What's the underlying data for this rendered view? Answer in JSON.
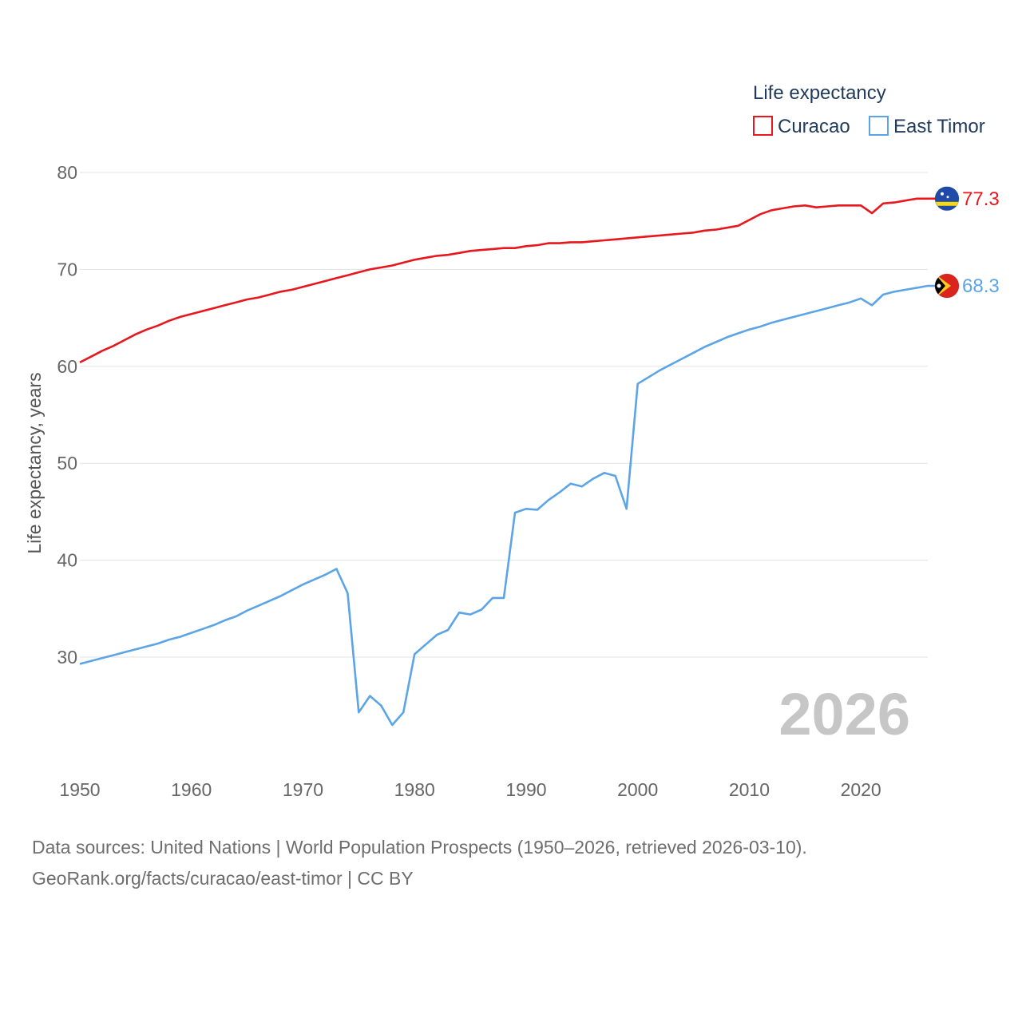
{
  "chart_data": {
    "type": "line",
    "legend_title": "Life expectancy",
    "ylabel": "Life expectancy, years",
    "xlim": [
      1950,
      2026
    ],
    "ylim": [
      20,
      80
    ],
    "yticks": [
      30,
      40,
      50,
      60,
      70,
      80
    ],
    "xticks": [
      1950,
      1960,
      1970,
      1980,
      1990,
      2000,
      2010,
      2020
    ],
    "year_label": "2026",
    "legend_position": "top-right",
    "series": [
      {
        "name": "Curacao",
        "color": "#e8171d",
        "end_label": "77.3",
        "flag_icon": "curacao-flag-icon",
        "x": [
          1950,
          1951,
          1952,
          1953,
          1954,
          1955,
          1956,
          1957,
          1958,
          1959,
          1960,
          1961,
          1962,
          1963,
          1964,
          1965,
          1966,
          1967,
          1968,
          1969,
          1970,
          1971,
          1972,
          1973,
          1974,
          1975,
          1976,
          1977,
          1978,
          1979,
          1980,
          1981,
          1982,
          1983,
          1984,
          1985,
          1986,
          1987,
          1988,
          1989,
          1990,
          1991,
          1992,
          1993,
          1994,
          1995,
          1996,
          1997,
          1998,
          1999,
          2000,
          2001,
          2002,
          2003,
          2004,
          2005,
          2006,
          2007,
          2008,
          2009,
          2010,
          2011,
          2012,
          2013,
          2014,
          2015,
          2016,
          2017,
          2018,
          2019,
          2020,
          2021,
          2022,
          2023,
          2024,
          2025,
          2026
        ],
        "values": [
          60.4,
          61.0,
          61.6,
          62.1,
          62.7,
          63.3,
          63.8,
          64.2,
          64.7,
          65.1,
          65.4,
          65.7,
          66.0,
          66.3,
          66.6,
          66.9,
          67.1,
          67.4,
          67.7,
          67.9,
          68.2,
          68.5,
          68.8,
          69.1,
          69.4,
          69.7,
          70.0,
          70.2,
          70.4,
          70.7,
          71.0,
          71.2,
          71.4,
          71.5,
          71.7,
          71.9,
          72.0,
          72.1,
          72.2,
          72.2,
          72.4,
          72.5,
          72.7,
          72.7,
          72.8,
          72.8,
          72.9,
          73.0,
          73.1,
          73.2,
          73.3,
          73.4,
          73.5,
          73.6,
          73.7,
          73.8,
          74.0,
          74.1,
          74.3,
          74.5,
          75.1,
          75.7,
          76.1,
          76.3,
          76.5,
          76.6,
          76.4,
          76.5,
          76.6,
          76.6,
          76.6,
          75.8,
          76.8,
          76.9,
          77.1,
          77.3,
          77.3
        ]
      },
      {
        "name": "East Timor",
        "color": "#5ba4e6",
        "end_label": "68.3",
        "flag_icon": "east-timor-flag-icon",
        "x": [
          1950,
          1951,
          1952,
          1953,
          1954,
          1955,
          1956,
          1957,
          1958,
          1959,
          1960,
          1961,
          1962,
          1963,
          1964,
          1965,
          1966,
          1967,
          1968,
          1969,
          1970,
          1971,
          1972,
          1973,
          1974,
          1975,
          1976,
          1977,
          1978,
          1979,
          1980,
          1981,
          1982,
          1983,
          1984,
          1985,
          1986,
          1987,
          1988,
          1989,
          1990,
          1991,
          1992,
          1993,
          1994,
          1995,
          1996,
          1997,
          1998,
          1999,
          2000,
          2001,
          2002,
          2003,
          2004,
          2005,
          2006,
          2007,
          2008,
          2009,
          2010,
          2011,
          2012,
          2013,
          2014,
          2015,
          2016,
          2017,
          2018,
          2019,
          2020,
          2021,
          2022,
          2023,
          2024,
          2025,
          2026
        ],
        "values": [
          29.3,
          29.6,
          29.9,
          30.2,
          30.5,
          30.8,
          31.1,
          31.4,
          31.8,
          32.1,
          32.5,
          32.9,
          33.3,
          33.8,
          34.2,
          34.8,
          35.3,
          35.8,
          36.3,
          36.9,
          37.5,
          38.0,
          38.5,
          39.1,
          36.6,
          24.3,
          26.0,
          25.0,
          23.0,
          24.3,
          30.3,
          31.3,
          32.3,
          32.8,
          34.6,
          34.4,
          34.9,
          36.1,
          36.1,
          44.9,
          45.3,
          45.2,
          46.2,
          47.0,
          47.9,
          47.6,
          48.4,
          49.0,
          48.7,
          45.3,
          58.2,
          58.9,
          59.6,
          60.2,
          60.8,
          61.4,
          62.0,
          62.5,
          63.0,
          63.4,
          63.8,
          64.1,
          64.5,
          64.8,
          65.1,
          65.4,
          65.7,
          66.0,
          66.3,
          66.6,
          67.0,
          66.3,
          67.4,
          67.7,
          67.9,
          68.1,
          68.3
        ]
      }
    ]
  },
  "footer": {
    "sources": "Data sources: United Nations | World Population Prospects (1950–2026, retrieved 2026-03-10).",
    "credit": "GeoRank.org/facts/curacao/east-timor | CC BY"
  }
}
